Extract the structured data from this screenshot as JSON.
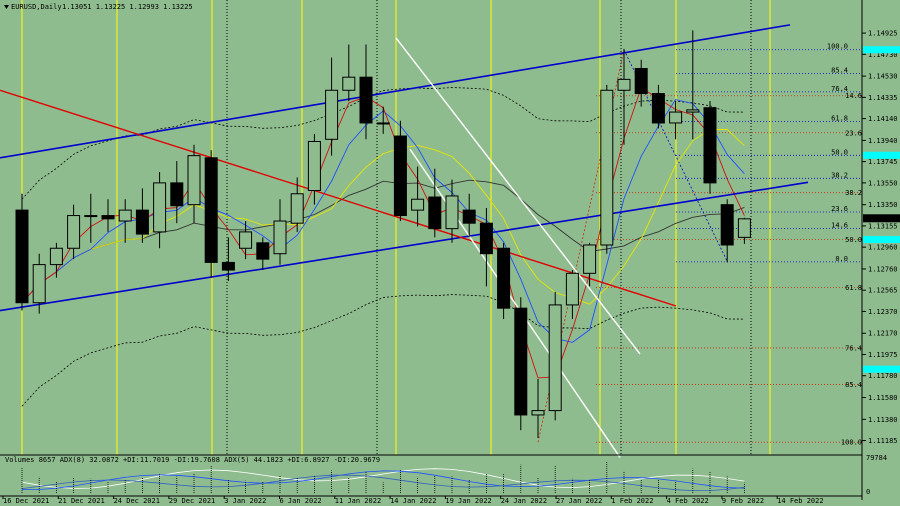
{
  "header": {
    "symbol_label": "EURUSD,Daily",
    "ohlc_label": "1.13051 1.13225 1.12993 1.13225"
  },
  "indicator": {
    "label": "Volumes 8657  ADX(8) 32.0872 +DI:11.7019 -DI:19.7608  ADX(5) 44.1823 +DI:6.8927 -DI:20.9679",
    "scale_top": "79784",
    "scale_bottom": "0"
  },
  "colors": {
    "background": "#8fbc8f",
    "bull_candle": "#8fbc8f",
    "bear_candle": "#000000",
    "channel": "#0000cd",
    "red_trend": "#e00000",
    "white_trend": "#ffffff",
    "yellow_vline": "#ffff00",
    "fib_blue": "#0000cd",
    "fib_red": "#cc2200",
    "price_marker": "#00ffff"
  },
  "chart_data": {
    "type": "candlestick",
    "x_labels": [
      "16 Dec 2021",
      "21 Dec 2021",
      "24 Dec 2021",
      "29 Dec 2021",
      "3 Jan 2022",
      "6 Jan 2022",
      "11 Jan 2022",
      "14 Jan 2022",
      "19 Jan 2022",
      "24 Jan 2022",
      "27 Jan 2022",
      "1 Feb 2022",
      "4 Feb 2022",
      "9 Feb 2022",
      "14 Feb 2022"
    ],
    "y_ticks": [
      "1.14925",
      "1.14730",
      "1.14530",
      "1.14335",
      "1.14140",
      "1.13940",
      "1.13745",
      "1.13550",
      "1.13350",
      "1.13155",
      "1.12960",
      "1.12760",
      "1.12565",
      "1.12370",
      "1.12170",
      "1.11975",
      "1.11780",
      "1.11580",
      "1.11380",
      "1.11185"
    ],
    "ylim": [
      1.1108,
      1.151
    ],
    "current_price": "1.13225",
    "fib_blue_levels": [
      {
        "label": "100.0",
        "value": 1.14772
      },
      {
        "label": "85.4",
        "value": 1.14555
      },
      {
        "label": "76.4",
        "value": 1.14385
      },
      {
        "label": "61.8",
        "value": 1.14112
      },
      {
        "label": "50.0",
        "value": 1.13803
      },
      {
        "label": "38.2",
        "value": 1.13592
      },
      {
        "label": "23.6",
        "value": 1.13283
      },
      {
        "label": "14.6",
        "value": 1.1313
      },
      {
        "label": "0.0",
        "value": 1.12825
      }
    ],
    "fib_red_levels": [
      {
        "label": "14.6",
        "value": 1.1435
      },
      {
        "label": "23.6",
        "value": 1.1401
      },
      {
        "label": "38.2",
        "value": 1.1346
      },
      {
        "label": "50.0",
        "value": 1.1303
      },
      {
        "label": "61.8",
        "value": 1.1259
      },
      {
        "label": "76.4",
        "value": 1.12035
      },
      {
        "label": "85.4",
        "value": 1.117
      },
      {
        "label": "100.0",
        "value": 1.1117
      }
    ],
    "candles": [
      {
        "o": 1.133,
        "h": 1.1345,
        "l": 1.1238,
        "c": 1.1245
      },
      {
        "o": 1.1245,
        "h": 1.129,
        "l": 1.1235,
        "c": 1.128
      },
      {
        "o": 1.128,
        "h": 1.13,
        "l": 1.1268,
        "c": 1.1295
      },
      {
        "o": 1.1295,
        "h": 1.1335,
        "l": 1.1285,
        "c": 1.1325
      },
      {
        "o": 1.1325,
        "h": 1.1345,
        "l": 1.13,
        "c": 1.1325
      },
      {
        "o": 1.1325,
        "h": 1.134,
        "l": 1.131,
        "c": 1.1322
      },
      {
        "o": 1.132,
        "h": 1.134,
        "l": 1.13,
        "c": 1.133
      },
      {
        "o": 1.133,
        "h": 1.135,
        "l": 1.13,
        "c": 1.1308
      },
      {
        "o": 1.131,
        "h": 1.1365,
        "l": 1.1295,
        "c": 1.1355
      },
      {
        "o": 1.1355,
        "h": 1.1375,
        "l": 1.1318,
        "c": 1.1334
      },
      {
        "o": 1.1335,
        "h": 1.139,
        "l": 1.1318,
        "c": 1.138
      },
      {
        "o": 1.1378,
        "h": 1.1385,
        "l": 1.1268,
        "c": 1.1282
      },
      {
        "o": 1.1282,
        "h": 1.1305,
        "l": 1.1265,
        "c": 1.1275
      },
      {
        "o": 1.1295,
        "h": 1.132,
        "l": 1.1285,
        "c": 1.131
      },
      {
        "o": 1.13,
        "h": 1.1305,
        "l": 1.1275,
        "c": 1.1285
      },
      {
        "o": 1.129,
        "h": 1.134,
        "l": 1.128,
        "c": 1.132
      },
      {
        "o": 1.1318,
        "h": 1.136,
        "l": 1.131,
        "c": 1.1345
      },
      {
        "o": 1.1348,
        "h": 1.14,
        "l": 1.1335,
        "c": 1.1393
      },
      {
        "o": 1.1395,
        "h": 1.147,
        "l": 1.138,
        "c": 1.144
      },
      {
        "o": 1.144,
        "h": 1.1482,
        "l": 1.143,
        "c": 1.1452
      },
      {
        "o": 1.1452,
        "h": 1.1482,
        "l": 1.1395,
        "c": 1.141
      },
      {
        "o": 1.141,
        "h": 1.1425,
        "l": 1.14,
        "c": 1.141
      },
      {
        "o": 1.1398,
        "h": 1.1412,
        "l": 1.132,
        "c": 1.1325
      },
      {
        "o": 1.133,
        "h": 1.137,
        "l": 1.1315,
        "c": 1.134
      },
      {
        "o": 1.1342,
        "h": 1.1368,
        "l": 1.1305,
        "c": 1.1313
      },
      {
        "o": 1.1313,
        "h": 1.1358,
        "l": 1.13,
        "c": 1.1343
      },
      {
        "o": 1.133,
        "h": 1.1345,
        "l": 1.1305,
        "c": 1.1318
      },
      {
        "o": 1.1318,
        "h": 1.1332,
        "l": 1.126,
        "c": 1.129
      },
      {
        "o": 1.1295,
        "h": 1.13,
        "l": 1.123,
        "c": 1.124
      },
      {
        "o": 1.124,
        "h": 1.125,
        "l": 1.1128,
        "c": 1.1142
      },
      {
        "o": 1.1142,
        "h": 1.1175,
        "l": 1.1121,
        "c": 1.1146
      },
      {
        "o": 1.1146,
        "h": 1.1255,
        "l": 1.1137,
        "c": 1.1243
      },
      {
        "o": 1.1243,
        "h": 1.1275,
        "l": 1.123,
        "c": 1.1272
      },
      {
        "o": 1.1272,
        "h": 1.13,
        "l": 1.126,
        "c": 1.1298
      },
      {
        "o": 1.1298,
        "h": 1.1445,
        "l": 1.129,
        "c": 1.144
      },
      {
        "o": 1.144,
        "h": 1.1478,
        "l": 1.139,
        "c": 1.145
      },
      {
        "o": 1.146,
        "h": 1.1468,
        "l": 1.1425,
        "c": 1.1437
      },
      {
        "o": 1.1437,
        "h": 1.1445,
        "l": 1.1405,
        "c": 1.141
      },
      {
        "o": 1.141,
        "h": 1.143,
        "l": 1.1395,
        "c": 1.142
      },
      {
        "o": 1.142,
        "h": 1.1495,
        "l": 1.1395,
        "c": 1.1422
      },
      {
        "o": 1.1424,
        "h": 1.143,
        "l": 1.1345,
        "c": 1.1355
      },
      {
        "o": 1.1335,
        "h": 1.134,
        "l": 1.1282,
        "c": 1.1298
      },
      {
        "o": 1.1305,
        "h": 1.1323,
        "l": 1.1299,
        "c": 1.1322
      }
    ]
  }
}
